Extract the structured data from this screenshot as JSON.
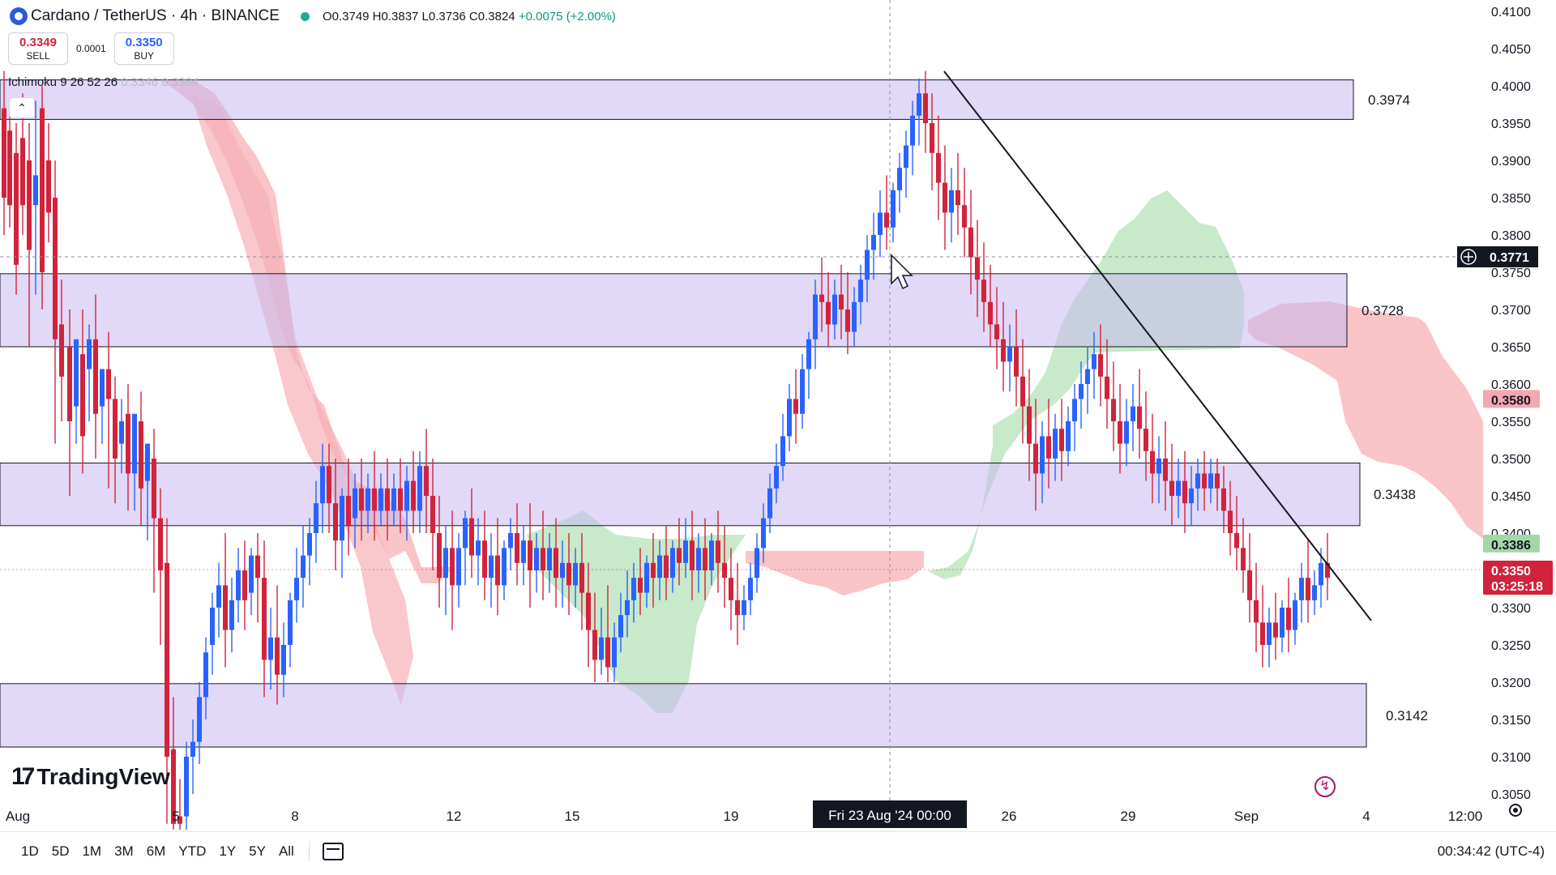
{
  "header": {
    "symbol": "Cardano / TetherUS · 4h · BINANCE",
    "ohlc": "O0.3749 H0.3837 L0.3736 C0.3824",
    "change": "+0.0075 (+2.00%)"
  },
  "trade": {
    "sell_price": "0.3349",
    "sell_label": "SELL",
    "spread": "0.0001",
    "buy_price": "0.3350",
    "buy_label": "BUY"
  },
  "indicator": {
    "name": "Ichimoku 9 26 52 26",
    "values": "0.3346 0.3384"
  },
  "watermark": "TradingView",
  "price_axis": {
    "ticks": [
      "0.4100",
      "0.4050",
      "0.4000",
      "0.3950",
      "0.3900",
      "0.3850",
      "0.3800",
      "0.3750",
      "0.3700",
      "0.3650",
      "0.3600",
      "0.3550",
      "0.3500",
      "0.3450",
      "0.3400",
      "0.3350",
      "0.3300",
      "0.3250",
      "0.3200",
      "0.3150",
      "0.3100",
      "0.3050"
    ],
    "crosshair_price": "0.3771",
    "label_red": "0.3580",
    "label_green": "0.3386",
    "current_price": "0.3350",
    "countdown": "03:25:18"
  },
  "time_axis": {
    "ticks": [
      "Aug",
      "5",
      "8",
      "12",
      "15",
      "19",
      "26",
      "29",
      "Sep",
      "4",
      "12:00"
    ],
    "crosshair_time": "Fri 23 Aug '24   00:00"
  },
  "zones": [
    {
      "label": "0.3974",
      "top": 0.4008,
      "bottom": 0.3955
    },
    {
      "label": "0.3728",
      "top": 0.3748,
      "bottom": 0.365
    },
    {
      "label": "0.3438",
      "top": 0.3494,
      "bottom": 0.341
    },
    {
      "label": "0.3142",
      "top": 0.3198,
      "bottom": 0.3113
    }
  ],
  "colors": {
    "up": "#2962ff",
    "down": "#d1233b",
    "zone": "#c9b9f0",
    "cloud_red": "#f7b0b6",
    "cloud_green": "#b6e2b8",
    "crosshair": "#8a8f9c"
  },
  "timeframes": [
    "1D",
    "5D",
    "1M",
    "3M",
    "6M",
    "YTD",
    "1Y",
    "5Y",
    "All"
  ],
  "clock": "00:34:42 (UTC-4)",
  "icons": [
    "ada-coin-icon",
    "status-dot-icon",
    "collapse-chevron-icon",
    "crosshair-plus-icon",
    "cursor-arrow-icon",
    "lightning-icon",
    "settings-gear-icon",
    "calendar-range-icon",
    "tradingview-logo-icon"
  ]
}
